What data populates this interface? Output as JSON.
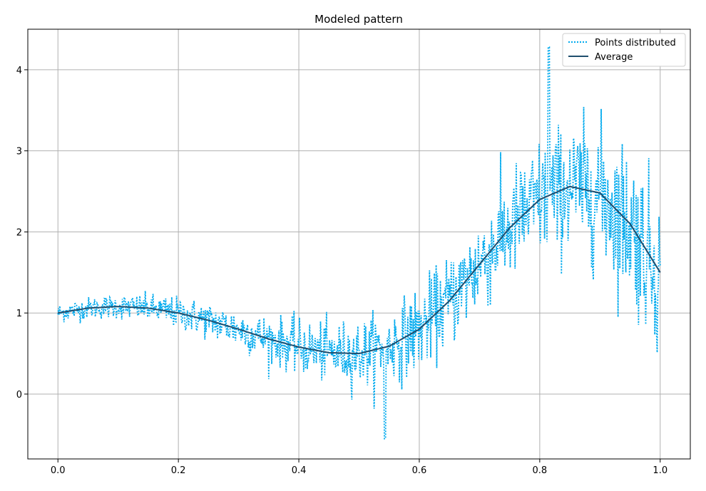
{
  "chart_data": {
    "type": "line",
    "title": "Modeled pattern",
    "xlabel": "",
    "ylabel": "",
    "xlim": [
      -0.05,
      1.05
    ],
    "ylim": [
      -0.8,
      4.5
    ],
    "xticks": [
      0.0,
      0.2,
      0.4,
      0.6,
      0.8,
      1.0
    ],
    "xtick_labels": [
      "0.0",
      "0.2",
      "0.4",
      "0.6",
      "0.8",
      "1.0"
    ],
    "yticks": [
      0,
      1,
      2,
      3,
      4
    ],
    "ytick_labels": [
      "0",
      "1",
      "2",
      "3",
      "4"
    ],
    "grid": true,
    "legend_position": "top-right",
    "series": [
      {
        "name": "Points distributed",
        "style": "dotted",
        "color": "#00aaee",
        "points": 1000,
        "description_curve": "noisy samples around average; noise grows with x",
        "peak_value": 4.28,
        "min_value": -0.55
      },
      {
        "name": "Average",
        "style": "solid",
        "color": "#1f4e6e",
        "x": [
          0.0,
          0.05,
          0.1,
          0.15,
          0.2,
          0.25,
          0.3,
          0.35,
          0.4,
          0.45,
          0.5,
          0.55,
          0.6,
          0.65,
          0.7,
          0.75,
          0.8,
          0.85,
          0.9,
          0.95,
          1.0
        ],
        "y": [
          1.0,
          1.06,
          1.08,
          1.06,
          1.0,
          0.91,
          0.8,
          0.68,
          0.58,
          0.51,
          0.5,
          0.59,
          0.8,
          1.15,
          1.6,
          2.05,
          2.4,
          2.56,
          2.48,
          2.1,
          1.5
        ]
      }
    ]
  }
}
